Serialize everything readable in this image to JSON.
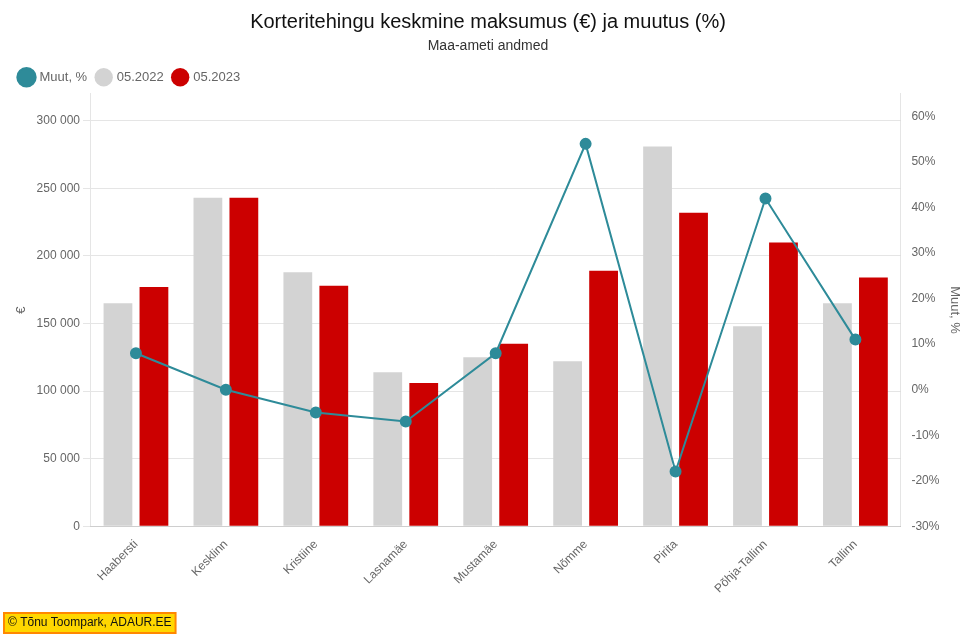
{
  "chart_data": {
    "type": "bar",
    "title": "Korteritehingu keskmine maksumus (€) ja muutus (%)",
    "subtitle": "Maa-ameti andmed",
    "ylabel": "€",
    "y2label": "Muut, %",
    "categories": [
      "Haabersti",
      "Kesklinn",
      "Kristiine",
      "Lasnamäe",
      "Mustamäe",
      "Nõmme",
      "Pirita",
      "Põhja-Tallinn",
      "Tallinn"
    ],
    "series": [
      {
        "name": "05.2022",
        "color": "#d3d3d3",
        "values": [
          165000,
          243000,
          188000,
          114000,
          125000,
          122000,
          281000,
          148000,
          165000
        ]
      },
      {
        "name": "05.2023",
        "color": "#cc0000",
        "values": [
          177000,
          243000,
          178000,
          106000,
          135000,
          189000,
          232000,
          210000,
          184000
        ]
      },
      {
        "name": "Muut, %",
        "type": "line",
        "axis": "y2",
        "color": "#2e8b99",
        "marker": "circle",
        "values": [
          8,
          0,
          -5,
          -7,
          8,
          54,
          -18,
          42,
          11
        ]
      }
    ],
    "ylim": [
      0,
      320000
    ],
    "yticks": [
      0,
      {
        "value": 50000,
        "label": "50 000"
      },
      {
        "value": 100000,
        "label": "100 000"
      },
      {
        "value": 150000,
        "label": "150 000"
      },
      {
        "value": 200000,
        "label": "200 000"
      },
      {
        "value": 250000,
        "label": "250 000"
      },
      {
        "value": 300000,
        "label": "300 000"
      }
    ],
    "y2lim": [
      -30,
      65
    ],
    "y2ticks": [
      {
        "value": -30,
        "label": "-30%"
      },
      {
        "value": -20,
        "label": "-20%"
      },
      {
        "value": -10,
        "label": "-10%"
      },
      {
        "value": 0,
        "label": "0%"
      },
      {
        "value": 10,
        "label": "10%"
      },
      {
        "value": 20,
        "label": "20%"
      },
      {
        "value": 30,
        "label": "30%"
      },
      {
        "value": 40,
        "label": "40%"
      },
      {
        "value": 50,
        "label": "50%"
      },
      {
        "value": 60,
        "label": "60%"
      }
    ],
    "grid": true,
    "legend": "upper left",
    "annotations": [
      "© Tõnu Toompark, ADAUR.EE"
    ]
  }
}
